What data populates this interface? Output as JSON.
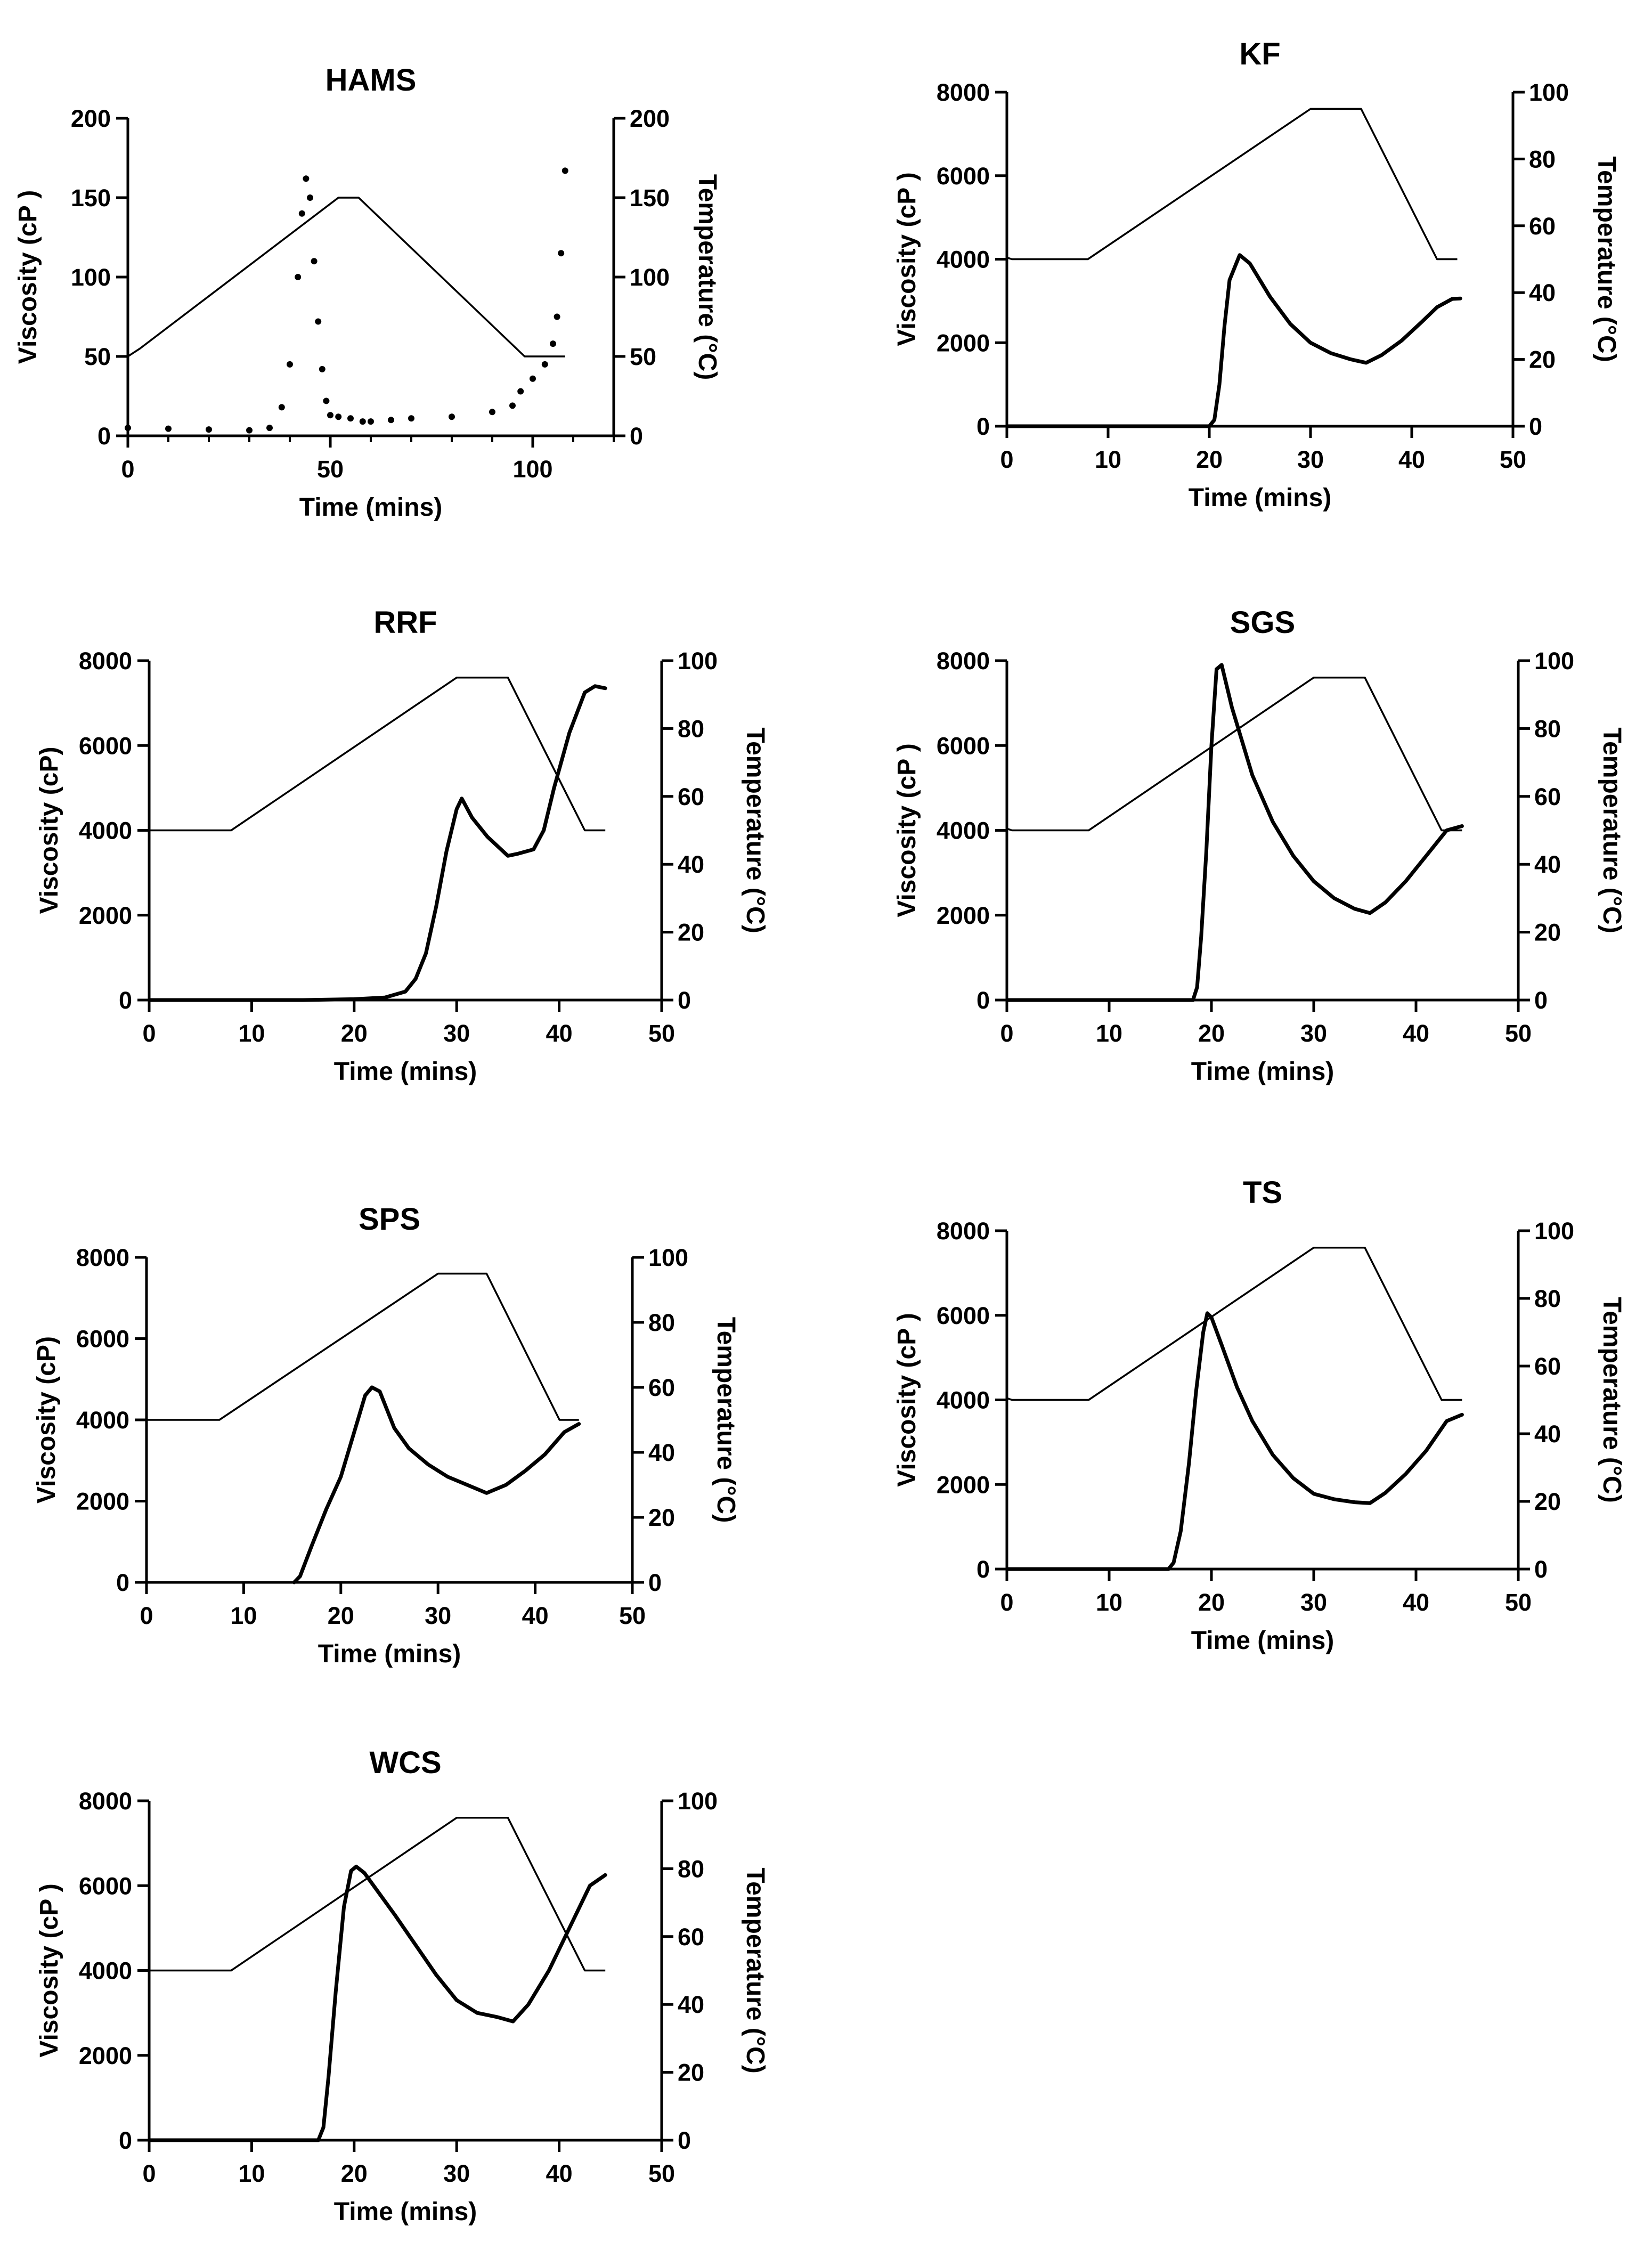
{
  "figure": {
    "background": "#ffffff",
    "ink": "#000000"
  },
  "chart_data": [
    {
      "id": "hams",
      "type": "line",
      "title": "HAMS",
      "xlabel": "Time (mins)",
      "ylabel": "Viscosity (cP )",
      "y2label": "Temperature (°C)",
      "xlim": [
        0,
        120
      ],
      "ylim": [
        0,
        200
      ],
      "y2lim": [
        0,
        200
      ],
      "xticks": [
        0,
        50,
        100
      ],
      "xminor": [
        0,
        10,
        20,
        30,
        40,
        50,
        60,
        70,
        80,
        90,
        100,
        110,
        120
      ],
      "yticks": [
        0,
        50,
        100,
        150,
        200
      ],
      "y2ticks": [
        0,
        50,
        100,
        150,
        200
      ],
      "series": [
        {
          "name": "Viscosity",
          "axis": "left",
          "style": "dots",
          "x": [
            0,
            10,
            20,
            30,
            35,
            38,
            40,
            42,
            43,
            44,
            45,
            46,
            47,
            48,
            49,
            50,
            52,
            55,
            58,
            60,
            65,
            70,
            80,
            90,
            95,
            97,
            100,
            103,
            105,
            106,
            107,
            108
          ],
          "y": [
            5,
            4.5,
            4,
            3.5,
            5,
            18,
            45,
            100,
            140,
            162,
            150,
            110,
            72,
            42,
            22,
            13,
            12,
            11,
            9,
            9,
            10,
            11,
            12,
            15,
            19,
            28,
            36,
            45,
            58,
            75,
            115,
            167
          ]
        },
        {
          "name": "Temperature",
          "axis": "right",
          "style": "line",
          "x": [
            0,
            3,
            52,
            57,
            98,
            108
          ],
          "y": [
            50,
            55,
            150,
            150,
            50,
            50
          ]
        }
      ]
    },
    {
      "id": "kf",
      "type": "line",
      "title": "KF",
      "xlabel": "Time (mins)",
      "ylabel": "Viscosity (cP )",
      "y2label": "Temperature (°C)",
      "xlim": [
        0,
        50
      ],
      "ylim": [
        0,
        8000
      ],
      "y2lim": [
        0,
        100
      ],
      "xticks": [
        0,
        10,
        20,
        30,
        40,
        50
      ],
      "yticks": [
        0,
        2000,
        4000,
        6000,
        8000
      ],
      "y2ticks": [
        0,
        20,
        40,
        60,
        80,
        100
      ],
      "series": [
        {
          "name": "Viscosity",
          "axis": "left",
          "style": "line",
          "x": [
            0,
            20,
            20.5,
            21,
            21.5,
            22,
            23,
            24,
            26,
            28,
            30,
            32,
            34,
            35.5,
            37,
            39,
            41,
            42.5,
            44,
            44.8
          ],
          "y": [
            0,
            0,
            150,
            1000,
            2400,
            3500,
            4100,
            3900,
            3100,
            2450,
            2000,
            1750,
            1600,
            1520,
            1700,
            2050,
            2500,
            2850,
            3050,
            3060
          ]
        },
        {
          "name": "Temperature",
          "axis": "right",
          "style": "line",
          "x": [
            0,
            0.5,
            8,
            30,
            35,
            42.5,
            44.5
          ],
          "y": [
            50.5,
            50,
            50,
            95,
            95,
            50,
            50
          ]
        }
      ]
    },
    {
      "id": "rrf",
      "type": "line",
      "title": "RRF",
      "xlabel": "Time (mins)",
      "ylabel": "Viscosity (cP)",
      "y2label": "Temperature (°C)",
      "xlim": [
        0,
        50
      ],
      "ylim": [
        0,
        8000
      ],
      "y2lim": [
        0,
        100
      ],
      "xticks": [
        0,
        10,
        20,
        30,
        40,
        50
      ],
      "yticks": [
        0,
        2000,
        4000,
        6000,
        8000
      ],
      "y2ticks": [
        0,
        20,
        40,
        60,
        80,
        100
      ],
      "series": [
        {
          "name": "Viscosity",
          "axis": "left",
          "style": "line",
          "x": [
            0,
            15,
            20,
            23,
            25,
            26,
            27,
            28,
            29,
            30,
            30.5,
            31.5,
            33,
            35,
            36,
            37.5,
            38.5,
            39.5,
            41,
            42.5,
            43.5,
            44.5
          ],
          "y": [
            0,
            0,
            20,
            60,
            200,
            500,
            1100,
            2200,
            3500,
            4500,
            4750,
            4300,
            3850,
            3400,
            3450,
            3550,
            4000,
            5000,
            6300,
            7250,
            7400,
            7350
          ]
        },
        {
          "name": "Temperature",
          "axis": "right",
          "style": "line",
          "x": [
            0,
            8,
            30,
            35,
            42.5,
            44.5
          ],
          "y": [
            50,
            50,
            95,
            95,
            50,
            50
          ]
        }
      ]
    },
    {
      "id": "sgs",
      "type": "line",
      "title": "SGS",
      "xlabel": "Time (mins)",
      "ylabel": "Viscosity (cP )",
      "y2label": "Temperature (°C)",
      "xlim": [
        0,
        50
      ],
      "ylim": [
        0,
        8000
      ],
      "y2lim": [
        0,
        100
      ],
      "xticks": [
        0,
        10,
        20,
        30,
        40,
        50
      ],
      "yticks": [
        0,
        2000,
        4000,
        6000,
        8000
      ],
      "y2ticks": [
        0,
        20,
        40,
        60,
        80,
        100
      ],
      "series": [
        {
          "name": "Viscosity",
          "axis": "left",
          "style": "line",
          "x": [
            0,
            18.2,
            18.6,
            19,
            19.5,
            20,
            20.5,
            21,
            22,
            24,
            26,
            28,
            30,
            32,
            34,
            35.5,
            37,
            39,
            41,
            43,
            44.5
          ],
          "y": [
            0,
            0,
            300,
            1500,
            3500,
            6000,
            7800,
            7900,
            6900,
            5300,
            4200,
            3400,
            2800,
            2400,
            2150,
            2050,
            2300,
            2800,
            3400,
            4000,
            4100
          ]
        },
        {
          "name": "Temperature",
          "axis": "right",
          "style": "line",
          "x": [
            0,
            0.5,
            8,
            30,
            35,
            42.5,
            44.5
          ],
          "y": [
            50.5,
            50,
            50,
            95,
            95,
            50,
            50
          ]
        }
      ]
    },
    {
      "id": "sps",
      "type": "line",
      "title": "SPS",
      "xlabel": "Time (mins)",
      "ylabel": "Viscosity (cP)",
      "y2label": "Temperature (°C)",
      "xlim": [
        0,
        50
      ],
      "ylim": [
        0,
        8000
      ],
      "y2lim": [
        0,
        100
      ],
      "xticks": [
        0,
        10,
        20,
        30,
        40,
        50
      ],
      "yticks": [
        0,
        2000,
        4000,
        6000,
        8000
      ],
      "y2ticks": [
        0,
        20,
        40,
        60,
        80,
        100
      ],
      "series": [
        {
          "name": "Viscosity",
          "axis": "left",
          "style": "line",
          "x": [
            15.2,
            15.8,
            17,
            18.5,
            20,
            21.5,
            22.5,
            23.2,
            24,
            25.5,
            27,
            29,
            31,
            33,
            35,
            37,
            39,
            41,
            43,
            44.5
          ],
          "y": [
            0,
            150,
            900,
            1800,
            2600,
            3800,
            4600,
            4800,
            4700,
            3800,
            3300,
            2900,
            2600,
            2400,
            2200,
            2400,
            2750,
            3150,
            3700,
            3900
          ]
        },
        {
          "name": "Temperature",
          "axis": "right",
          "style": "line",
          "x": [
            0,
            7.5,
            30,
            35,
            42.5,
            44.5
          ],
          "y": [
            50,
            50,
            95,
            95,
            50,
            50
          ]
        }
      ]
    },
    {
      "id": "ts",
      "type": "line",
      "title": "TS",
      "xlabel": "Time (mins)",
      "ylabel": "Viscosity (cP )",
      "y2label": "Temperature (°C)",
      "xlim": [
        0,
        50
      ],
      "ylim": [
        0,
        8000
      ],
      "y2lim": [
        0,
        100
      ],
      "xticks": [
        0,
        10,
        20,
        30,
        40,
        50
      ],
      "yticks": [
        0,
        2000,
        4000,
        6000,
        8000
      ],
      "y2ticks": [
        0,
        20,
        40,
        60,
        80,
        100
      ],
      "series": [
        {
          "name": "Viscosity",
          "axis": "left",
          "style": "line",
          "x": [
            0,
            15.8,
            16.3,
            17,
            17.8,
            18.5,
            19.2,
            19.6,
            20,
            21,
            22.5,
            24,
            26,
            28,
            30,
            32,
            34,
            35.5,
            37,
            39,
            41,
            43,
            44.5
          ],
          "y": [
            0,
            0,
            150,
            900,
            2500,
            4200,
            5600,
            6050,
            5950,
            5300,
            4300,
            3500,
            2700,
            2150,
            1780,
            1650,
            1580,
            1560,
            1800,
            2250,
            2800,
            3500,
            3650
          ]
        },
        {
          "name": "Temperature",
          "axis": "right",
          "style": "line",
          "x": [
            0,
            0.5,
            8,
            30,
            35,
            42.5,
            44.5
          ],
          "y": [
            50.5,
            50,
            50,
            95,
            95,
            50,
            50
          ]
        }
      ]
    },
    {
      "id": "wcs",
      "type": "line",
      "title": "WCS",
      "xlabel": "Time (mins)",
      "ylabel": "Viscosity (cP )",
      "y2label": "Temperature (°C)",
      "xlim": [
        0,
        50
      ],
      "ylim": [
        0,
        8000
      ],
      "y2lim": [
        0,
        100
      ],
      "xticks": [
        0,
        10,
        20,
        30,
        40,
        50
      ],
      "yticks": [
        0,
        2000,
        4000,
        6000,
        8000
      ],
      "y2ticks": [
        0,
        20,
        40,
        60,
        80,
        100
      ],
      "series": [
        {
          "name": "Viscosity",
          "axis": "left",
          "style": "line",
          "x": [
            0,
            16.5,
            17,
            17.5,
            18.2,
            19,
            19.7,
            20.2,
            21,
            22.5,
            24,
            26,
            28,
            30,
            32,
            34,
            35.5,
            37,
            39,
            41,
            43,
            44.5
          ],
          "y": [
            0,
            0,
            300,
            1500,
            3500,
            5500,
            6350,
            6450,
            6300,
            5800,
            5300,
            4600,
            3900,
            3300,
            3000,
            2900,
            2800,
            3200,
            4000,
            5000,
            6000,
            6250
          ]
        },
        {
          "name": "Temperature",
          "axis": "right",
          "style": "line",
          "x": [
            0,
            8,
            30,
            35,
            42.5,
            44.5
          ],
          "y": [
            50,
            50,
            95,
            95,
            50,
            50
          ]
        }
      ]
    }
  ]
}
